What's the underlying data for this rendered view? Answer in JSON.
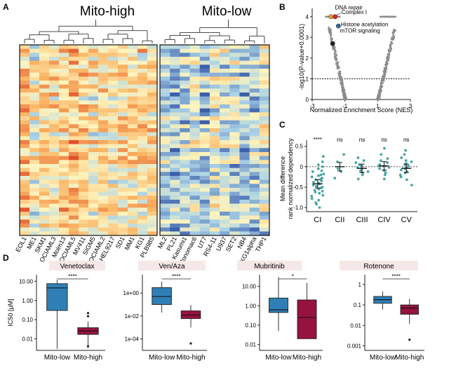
{
  "panels": {
    "A": {
      "letter": "A",
      "group_left": "Mito-high",
      "group_right": "Mito-low",
      "left_labels": [
        "EOL1",
        "ME1",
        "SKM1",
        "OCIAML3",
        "Molm13",
        "OCIAML5",
        "MV411",
        "SIGM5",
        "OCIAML2",
        "HEL9217",
        "SD1",
        "MM1",
        "KG1",
        "PLB985"
      ],
      "right_labels": [
        "ML2",
        "PL21",
        "Kasumi1",
        "Monomac6",
        "UT7",
        "RS4-11",
        "U937",
        "SET2",
        "NB4",
        "KG1alpha",
        "THP1"
      ]
    },
    "B": {
      "letter": "B",
      "ylabel": "-log10(P-value+0.0001)",
      "xlabel": "Normalized Enrichment Score (NES)",
      "annotations": [
        "DNA repair",
        "Complex I",
        "Histone acetylation",
        "mTOR signaling"
      ],
      "x_ticks": [
        "-3",
        "-1",
        "1",
        "3"
      ],
      "y_ticks": [
        "0",
        "1",
        "2",
        "3",
        "4"
      ]
    },
    "C": {
      "letter": "C",
      "ylabel_line1": "Mean difference",
      "ylabel_line2": "rank normalized dependency",
      "categories": [
        "CI",
        "CII",
        "CIII",
        "CIV",
        "CV"
      ],
      "significance": [
        "****",
        "ns",
        "ns",
        "ns",
        "ns"
      ],
      "y_ticks": [
        "-1.0",
        "-0.5",
        "0",
        "0.5"
      ]
    },
    "D": {
      "letter": "D",
      "ylabel": "IC50 [µM]",
      "xcats": [
        "Mito-low",
        "Mito-high"
      ],
      "colors": {
        "low": "#2f7fb6",
        "high": "#96133f"
      }
    }
  },
  "chart_data": [
    {
      "type": "heatmap",
      "panel": "A",
      "groups": [
        "Mito-high",
        "Mito-low"
      ],
      "columns_left": [
        "EOL1",
        "ME1",
        "SKM1",
        "OCIAML3",
        "Molm13",
        "OCIAML5",
        "MV411",
        "SIGM5",
        "OCIAML2",
        "HEL9217",
        "SD1",
        "MM1",
        "KG1",
        "PLB985"
      ],
      "columns_right": [
        "ML2",
        "PL21",
        "Kasumi1",
        "Monomac6",
        "UT7",
        "RS4-11",
        "U937",
        "SET2",
        "NB4",
        "KG1alpha",
        "THP1"
      ]
    },
    {
      "type": "scatter",
      "panel": "B",
      "xlabel": "Normalized Enrichment Score (NES)",
      "ylabel": "-log10(P-value+0.0001)",
      "xlim": [
        -3,
        3
      ],
      "ylim": [
        0,
        4.4
      ],
      "threshold_y": 1,
      "highlighted": [
        {
          "label": "DNA repair",
          "x": -1.85,
          "y": 4.0
        },
        {
          "label": "Complex I",
          "x": -1.6,
          "y": 4.0
        },
        {
          "label": "Histone acetylation",
          "x": -1.4,
          "y": 3.55
        },
        {
          "label": "mTOR signaling",
          "x": -1.75,
          "y": 2.7
        }
      ]
    },
    {
      "type": "scatter",
      "panel": "C",
      "categories": [
        "CI",
        "CII",
        "CIII",
        "CIV",
        "CV"
      ],
      "ylabel": "Mean difference rank normalized dependency",
      "ylim": [
        -1.1,
        0.65
      ],
      "means": [
        -0.42,
        0.0,
        -0.04,
        0.02,
        -0.04
      ],
      "significance": [
        "****",
        "ns",
        "ns",
        "ns",
        "ns"
      ],
      "points": [
        [
          0.25,
          0.12,
          0.05,
          0.0,
          -0.05,
          -0.1,
          -0.12,
          -0.18,
          -0.2,
          -0.22,
          -0.25,
          -0.28,
          -0.3,
          -0.32,
          -0.35,
          -0.38,
          -0.4,
          -0.42,
          -0.45,
          -0.48,
          -0.5,
          -0.52,
          -0.55,
          -0.58,
          -0.6,
          -0.62,
          -0.65,
          -0.7,
          -0.72,
          -0.78,
          -0.82,
          -0.88,
          -0.92,
          -1.0
        ],
        [
          0.3,
          0.12,
          -0.05,
          -0.12,
          -0.28
        ],
        [
          0.22,
          0.15,
          0.1,
          0.05,
          0.02,
          -0.02,
          -0.05,
          -0.1,
          -0.12,
          -0.15,
          -0.2,
          -0.3
        ],
        [
          0.45,
          0.3,
          0.2,
          0.15,
          0.1,
          0.05,
          0.02,
          -0.02,
          -0.05,
          -0.1,
          -0.15,
          -0.2,
          -0.3
        ],
        [
          0.4,
          0.3,
          0.22,
          0.15,
          0.12,
          0.08,
          0.05,
          0.02,
          -0.02,
          -0.05,
          -0.08,
          -0.12,
          -0.15,
          -0.2,
          -0.25,
          -0.32,
          -0.45
        ]
      ]
    },
    {
      "type": "box",
      "panel": "D",
      "title": "Venetoclax",
      "ylabel": "IC50 [µM]",
      "yscale": "log",
      "ylim": [
        0.0025,
        22
      ],
      "ticks": [
        {
          "v": 0.01,
          "l": "0.01"
        },
        {
          "v": 0.1,
          "l": "0.10"
        },
        {
          "v": 1,
          "l": "1.00"
        },
        {
          "v": 10,
          "l": "10.00"
        }
      ],
      "significance": "****",
      "low": {
        "min": 0.003,
        "q1": 0.3,
        "median": 4.5,
        "q3": 7.5,
        "max": 12,
        "outliers": []
      },
      "high": {
        "min": 0.004,
        "q1": 0.017,
        "median": 0.026,
        "q3": 0.038,
        "max": 0.08,
        "outliers": [
          0.22,
          0.15,
          0.004
        ]
      }
    },
    {
      "type": "box",
      "panel": "D",
      "title": "Ven/Aza",
      "ylabel": "IC50 [µM]",
      "yscale": "log",
      "ylim": [
        1e-05,
        40
      ],
      "ticks": [
        {
          "v": 0.0001,
          "l": "1e-04"
        },
        {
          "v": 0.01,
          "l": "1e-02"
        },
        {
          "v": 1,
          "l": "1e+00"
        }
      ],
      "significance": "****",
      "low": {
        "min": 0.02,
        "q1": 0.1,
        "median": 0.5,
        "q3": 3,
        "max": 10,
        "outliers": []
      },
      "high": {
        "min": 0.001,
        "q1": 0.006,
        "median": 0.012,
        "q3": 0.028,
        "max": 0.09,
        "outliers": [
          4e-05
        ]
      }
    },
    {
      "type": "box",
      "panel": "D",
      "title": "Mubritinib",
      "ylabel": "IC50 [µM]",
      "yscale": "log",
      "ylim": [
        0.005,
        40
      ],
      "ticks": [
        {
          "v": 0.01,
          "l": "0.01"
        },
        {
          "v": 0.1,
          "l": "0.10"
        },
        {
          "v": 1,
          "l": "1.00"
        },
        {
          "v": 10,
          "l": "10.00"
        }
      ],
      "significance": "*",
      "low": {
        "min": 0.05,
        "q1": 0.45,
        "median": 0.62,
        "q3": 2.5,
        "max": 30,
        "outliers": []
      },
      "high": {
        "min": 0.02,
        "q1": 0.02,
        "median": 0.25,
        "q3": 2,
        "max": 15,
        "outliers": []
      }
    },
    {
      "type": "box",
      "panel": "D",
      "title": "Rotenone",
      "ylabel": "IC50 [µM]",
      "yscale": "log",
      "ylim": [
        0.0006,
        3
      ],
      "ticks": [
        {
          "v": 0.001,
          "l": "0.001"
        },
        {
          "v": 0.01,
          "l": "0.01"
        },
        {
          "v": 0.1,
          "l": "0.1"
        },
        {
          "v": 1,
          "l": "1"
        }
      ],
      "significance": "****",
      "low": {
        "min": 0.06,
        "q1": 0.12,
        "median": 0.18,
        "q3": 0.26,
        "max": 0.45,
        "outliers": []
      },
      "high": {
        "min": 0.012,
        "q1": 0.035,
        "median": 0.07,
        "q3": 0.1,
        "max": 0.2,
        "outliers": [
          0.002
        ]
      }
    }
  ]
}
